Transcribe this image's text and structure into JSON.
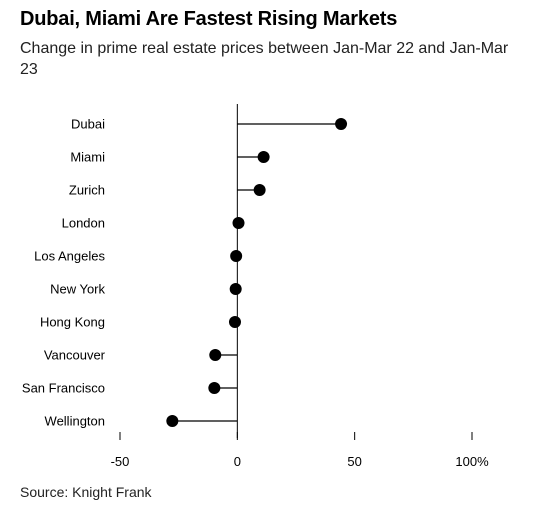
{
  "header": {
    "title": "Dubai, Miami Are Fastest Rising Markets",
    "subtitle": "Change in prime real estate prices between Jan-Mar 22 and Jan-Mar 23"
  },
  "footer": {
    "source": "Source: Knight Frank"
  },
  "chart_data": {
    "type": "scatter",
    "style": "lollipop",
    "title": "Dubai, Miami Are Fastest Rising Markets",
    "subtitle": "Change in prime real estate prices between Jan-Mar 22 and Jan-Mar 23",
    "xlabel": "",
    "ylabel": "",
    "xlim": [
      -50,
      100
    ],
    "x_ticks": [
      -50,
      0,
      50,
      100
    ],
    "x_tick_labels": [
      "-50",
      "0",
      "50",
      "100%"
    ],
    "grid": false,
    "categories": [
      "Dubai",
      "Miami",
      "Zurich",
      "London",
      "Los Angeles",
      "New York",
      "Hong Kong",
      "Vancouver",
      "San Francisco",
      "Wellington"
    ],
    "values": [
      44.2,
      11.2,
      9.5,
      0.5,
      -0.5,
      -0.7,
      -1.0,
      -9.4,
      -9.8,
      -27.7
    ],
    "colors": {
      "marker": "#000000",
      "stem": "#000000",
      "axis": "#000000"
    }
  }
}
